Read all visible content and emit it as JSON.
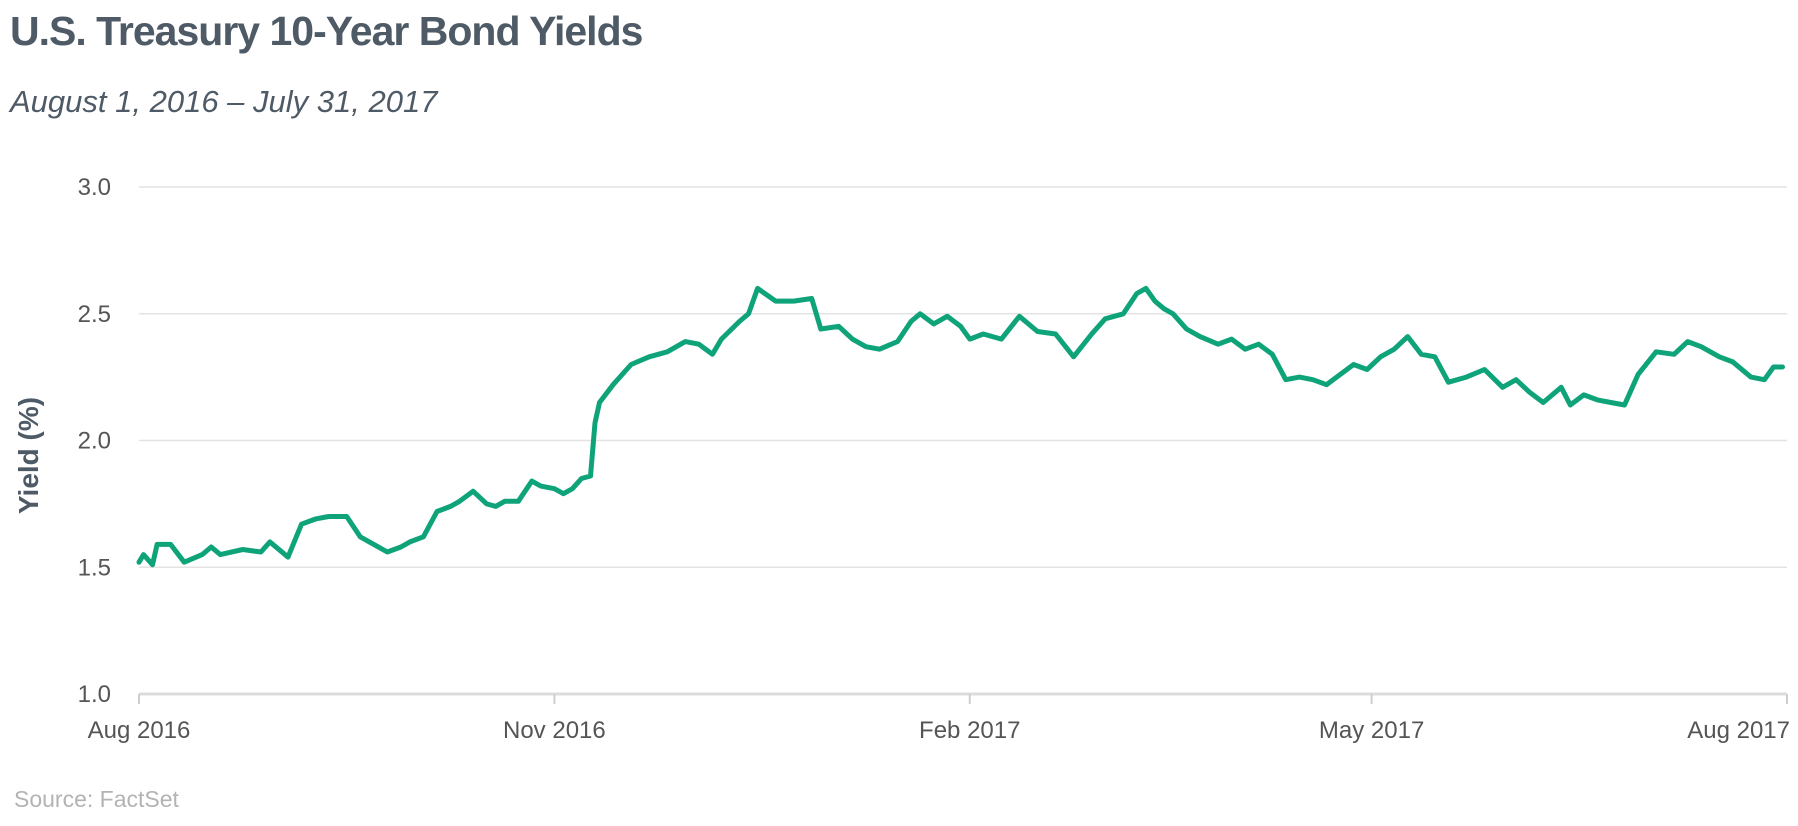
{
  "chart_data": {
    "type": "line",
    "title": "U.S. Treasury 10-Year Bond Yields",
    "subtitle": "August 1, 2016 – July 31, 2017",
    "ylabel": "Yield (%)",
    "xlabel": "",
    "source": "Source: FactSet",
    "ylim": [
      1.0,
      3.0
    ],
    "xlim": [
      "2016-08-01",
      "2017-08-01"
    ],
    "y_ticks": [
      "1.0",
      "1.5",
      "2.0",
      "2.5",
      "3.0"
    ],
    "x_ticks": [
      {
        "date": "2016-08-01",
        "label": "Aug 2016"
      },
      {
        "date": "2016-11-01",
        "label": "Nov 2016"
      },
      {
        "date": "2017-02-01",
        "label": "Feb 2017"
      },
      {
        "date": "2017-05-01",
        "label": "May 2017"
      },
      {
        "date": "2017-08-01",
        "label": "Aug 2017"
      }
    ],
    "grid": true,
    "line_color": "#0fa37a",
    "series": [
      {
        "x": [
          "2016-08-01",
          "2016-08-02",
          "2016-08-04",
          "2016-08-05",
          "2016-08-08",
          "2016-08-11",
          "2016-08-15",
          "2016-08-17",
          "2016-08-19",
          "2016-08-24",
          "2016-08-28",
          "2016-08-30",
          "2016-09-03",
          "2016-09-06",
          "2016-09-09",
          "2016-09-12",
          "2016-09-16",
          "2016-09-19",
          "2016-09-22",
          "2016-09-25",
          "2016-09-28",
          "2016-09-30",
          "2016-10-03",
          "2016-10-06",
          "2016-10-09",
          "2016-10-11",
          "2016-10-14",
          "2016-10-17",
          "2016-10-19",
          "2016-10-21",
          "2016-10-24",
          "2016-10-27",
          "2016-10-29",
          "2016-11-01",
          "2016-11-03",
          "2016-11-05",
          "2016-11-07",
          "2016-11-09",
          "2016-11-10",
          "2016-11-11",
          "2016-11-14",
          "2016-11-18",
          "2016-11-22",
          "2016-11-26",
          "2016-11-30",
          "2016-12-03",
          "2016-12-06",
          "2016-12-08",
          "2016-12-12",
          "2016-12-14",
          "2016-12-16",
          "2016-12-20",
          "2016-12-24",
          "2016-12-28",
          "2016-12-30",
          "2017-01-03",
          "2017-01-06",
          "2017-01-09",
          "2017-01-12",
          "2017-01-16",
          "2017-01-19",
          "2017-01-21",
          "2017-01-24",
          "2017-01-27",
          "2017-01-30",
          "2017-02-01",
          "2017-02-04",
          "2017-02-08",
          "2017-02-12",
          "2017-02-16",
          "2017-02-20",
          "2017-02-24",
          "2017-02-28",
          "2017-03-03",
          "2017-03-07",
          "2017-03-10",
          "2017-03-12",
          "2017-03-14",
          "2017-03-16",
          "2017-03-18",
          "2017-03-21",
          "2017-03-24",
          "2017-03-28",
          "2017-03-31",
          "2017-04-03",
          "2017-04-06",
          "2017-04-09",
          "2017-04-12",
          "2017-04-15",
          "2017-04-18",
          "2017-04-21",
          "2017-04-24",
          "2017-04-27",
          "2017-04-30",
          "2017-05-03",
          "2017-05-06",
          "2017-05-09",
          "2017-05-12",
          "2017-05-15",
          "2017-05-18",
          "2017-05-22",
          "2017-05-26",
          "2017-05-30",
          "2017-06-02",
          "2017-06-05",
          "2017-06-08",
          "2017-06-12",
          "2017-06-14",
          "2017-06-17",
          "2017-06-20",
          "2017-06-23",
          "2017-06-26",
          "2017-06-29",
          "2017-07-03",
          "2017-07-07",
          "2017-07-10",
          "2017-07-13",
          "2017-07-17",
          "2017-07-20",
          "2017-07-24",
          "2017-07-27",
          "2017-07-29",
          "2017-07-31"
        ],
        "y": [
          1.52,
          1.55,
          1.51,
          1.59,
          1.59,
          1.52,
          1.55,
          1.58,
          1.55,
          1.57,
          1.56,
          1.6,
          1.54,
          1.67,
          1.69,
          1.7,
          1.7,
          1.62,
          1.59,
          1.56,
          1.58,
          1.6,
          1.62,
          1.72,
          1.74,
          1.76,
          1.8,
          1.75,
          1.74,
          1.76,
          1.76,
          1.84,
          1.82,
          1.81,
          1.79,
          1.81,
          1.85,
          1.86,
          2.07,
          2.15,
          2.22,
          2.3,
          2.33,
          2.35,
          2.39,
          2.38,
          2.34,
          2.4,
          2.47,
          2.5,
          2.6,
          2.55,
          2.55,
          2.56,
          2.44,
          2.45,
          2.4,
          2.37,
          2.36,
          2.39,
          2.47,
          2.5,
          2.46,
          2.49,
          2.45,
          2.4,
          2.42,
          2.4,
          2.49,
          2.43,
          2.42,
          2.33,
          2.42,
          2.48,
          2.5,
          2.58,
          2.6,
          2.55,
          2.52,
          2.5,
          2.44,
          2.41,
          2.38,
          2.4,
          2.36,
          2.38,
          2.34,
          2.24,
          2.25,
          2.24,
          2.22,
          2.26,
          2.3,
          2.28,
          2.33,
          2.36,
          2.41,
          2.34,
          2.33,
          2.23,
          2.25,
          2.28,
          2.21,
          2.24,
          2.19,
          2.15,
          2.21,
          2.14,
          2.18,
          2.16,
          2.15,
          2.14,
          2.26,
          2.35,
          2.34,
          2.39,
          2.37,
          2.33,
          2.31,
          2.25,
          2.24,
          2.29,
          2.29
        ]
      }
    ]
  }
}
